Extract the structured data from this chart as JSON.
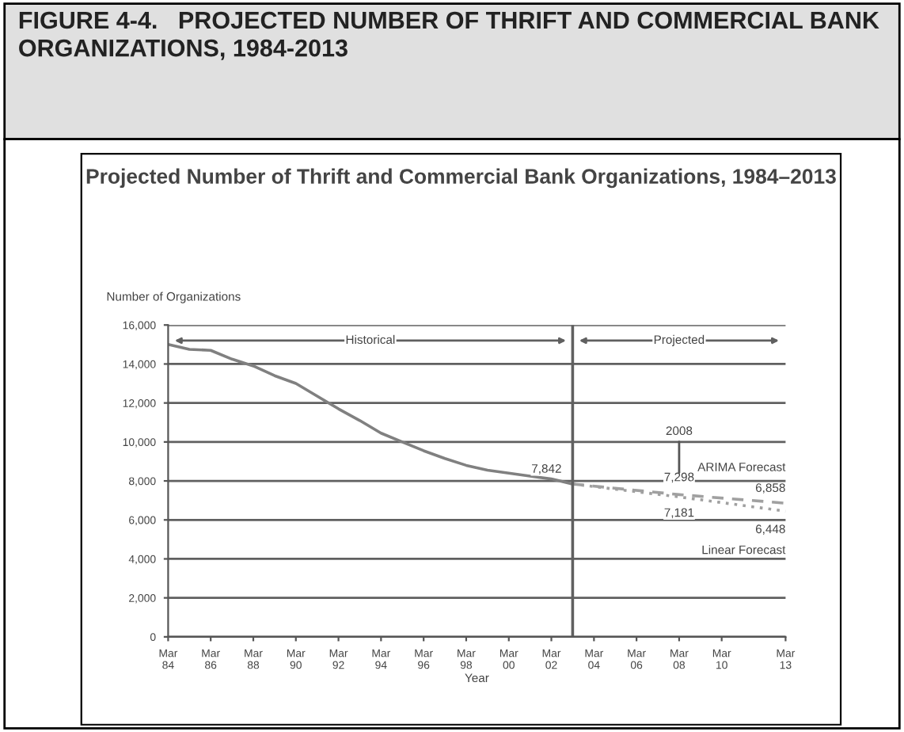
{
  "chart_data": {
    "type": "line",
    "title": "FIGURE 4-4.   PROJECTED NUMBER OF THRIFT AND COMMERCIAL BANK ORGANIZATIONS, 1984-2013",
    "subtitle": "Projected Number of Thrift and Commercial Bank Organizations, 1984–2013",
    "ylabel": "Number of Organizations",
    "xlabel": "Year",
    "series": [
      {
        "color": "#808080",
        "line_style": "solid",
        "x": [
          "1984-03",
          "1985-03",
          "1986-03",
          "1987-03",
          "1988-03",
          "1989-03",
          "1990-03",
          "1991-03",
          "1992-03",
          "1993-03",
          "1994-03",
          "1995-03",
          "1996-03",
          "1997-03",
          "1998-03",
          "1999-03",
          "2000-03",
          "2001-03",
          "2002-03",
          "2003-03"
        ],
        "values": [
          15000,
          14750,
          14700,
          14250,
          13900,
          13400,
          13000,
          12350,
          11700,
          11100,
          10450,
          10000,
          9550,
          9150,
          8800,
          8550,
          8400,
          8250,
          8100,
          7842
        ]
      },
      {
        "name": "ARIMA Forecast",
        "color": "#a0a0a0",
        "line_style": "dashed",
        "x": [
          "2003-03",
          "2008-03",
          "2013-03"
        ],
        "values": [
          7842,
          7298,
          6858
        ]
      },
      {
        "name": "Linear Forecast",
        "color": "#a0a0a0",
        "line_style": "dotted",
        "x": [
          "2003-03",
          "2008-03",
          "2013-03"
        ],
        "values": [
          7842,
          7181,
          6448
        ]
      }
    ],
    "xlim": [
      "1984-03",
      "2013-03"
    ],
    "xticks": [
      {
        "value": "1984-03",
        "label": "Mar\n84"
      },
      {
        "value": "1986-03",
        "label": "Mar\n86"
      },
      {
        "value": "1988-03",
        "label": "Mar\n88"
      },
      {
        "value": "1990-03",
        "label": "Mar\n90"
      },
      {
        "value": "1992-03",
        "label": "Mar\n92"
      },
      {
        "value": "1994-03",
        "label": "Mar\n94"
      },
      {
        "value": "1996-03",
        "label": "Mar\n96"
      },
      {
        "value": "1998-03",
        "label": "Mar\n98"
      },
      {
        "value": "2000-03",
        "label": "Mar\n00"
      },
      {
        "value": "2002-03",
        "label": "Mar\n02"
      },
      {
        "value": "2004-03",
        "label": "Mar\n04"
      },
      {
        "value": "2006-03",
        "label": "Mar\n06"
      },
      {
        "value": "2008-03",
        "label": "Mar\n08"
      },
      {
        "value": "2010-03",
        "label": "Mar\n10"
      },
      {
        "value": "2013-03",
        "label": "Mar\n13"
      }
    ],
    "ylim": [
      0,
      16000
    ],
    "yticks": [
      0,
      {
        "value": 2000,
        "label": "2,000"
      },
      {
        "value": 4000,
        "label": "4,000"
      },
      {
        "value": 6000,
        "label": "6,000"
      },
      {
        "value": 8000,
        "label": "8,000"
      },
      {
        "value": 10000,
        "label": "10,000"
      },
      {
        "value": 12000,
        "label": "12,000"
      },
      {
        "value": 14000,
        "label": "14,000"
      },
      {
        "value": 16000,
        "label": "16,000"
      }
    ],
    "grid": "y",
    "legend": false,
    "marker": "none",
    "ref_lines": [
      {
        "axis": "x",
        "value": "2003-03",
        "color": "#606060"
      }
    ],
    "annotations": [
      {
        "text": "7,842",
        "x": "2003-03",
        "y": 7842
      },
      {
        "text": "7,298",
        "x": "2008-03",
        "y": 7298
      },
      {
        "text": "7,181",
        "x": "2008-03",
        "y": 7181
      },
      {
        "text": "6,858",
        "x": "2013-03",
        "y": 6858
      },
      {
        "text": "6,448",
        "x": "2013-03",
        "y": 6448
      },
      "2008",
      "Historical",
      "Projected"
    ]
  }
}
